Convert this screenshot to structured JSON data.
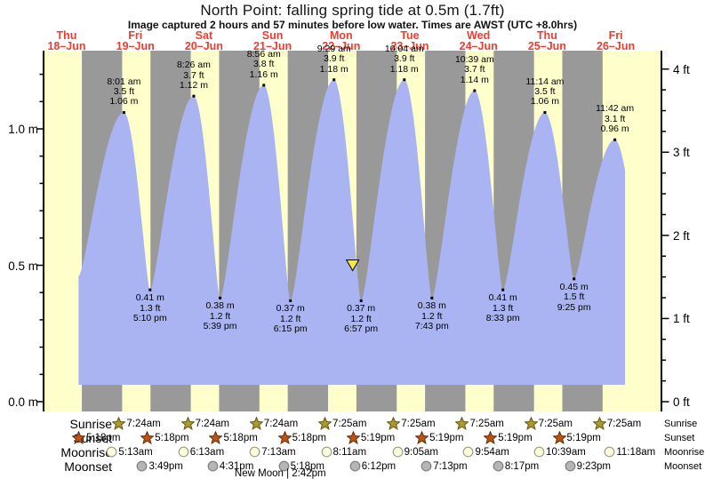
{
  "chart_data": {
    "type": "area",
    "title": "North Point: falling  spring tide at 0.5m (1.7ft)",
    "subtitle": "Image captured 2 hours and 57 minutes before low water. Times are AWST (UTC +8.0hrs)",
    "days": [
      {
        "dow": "Thu",
        "date": "18–Jun"
      },
      {
        "dow": "Fri",
        "date": "19–Jun"
      },
      {
        "dow": "Sat",
        "date": "20–Jun"
      },
      {
        "dow": "Sun",
        "date": "21–Jun"
      },
      {
        "dow": "Mon",
        "date": "22–Jun"
      },
      {
        "dow": "Tue",
        "date": "23–Jun"
      },
      {
        "dow": "Wed",
        "date": "24–Jun"
      },
      {
        "dow": "Thu",
        "date": "25–Jun"
      },
      {
        "dow": "Fri",
        "date": "26–Jun"
      }
    ],
    "y_axis_left": {
      "unit": "m",
      "major_ticks": [
        {
          "label": "0.0 m",
          "value": 0
        },
        {
          "label": "0.5 m",
          "value": 0.5
        },
        {
          "label": "1.0 m",
          "value": 1.0
        }
      ],
      "minor_step": 0.1,
      "max": 1.28
    },
    "y_axis_right": {
      "unit": "ft",
      "major_ticks": [
        {
          "label": "0 ft",
          "value": 0
        },
        {
          "label": "1 ft",
          "value": 1
        },
        {
          "label": "2 ft",
          "value": 2
        },
        {
          "label": "3 ft",
          "value": 3
        },
        {
          "label": "4 ft",
          "value": 4
        }
      ],
      "minor_step": 0.25
    },
    "tides": [
      {
        "day": 1,
        "type": "high",
        "time": "8:01 am",
        "ft": "3.5 ft",
        "m": "1.06 m",
        "height_m": 1.06
      },
      {
        "day": 1,
        "type": "low",
        "time": "5:10 pm",
        "ft": "1.3 ft",
        "m": "0.41 m",
        "height_m": 0.41
      },
      {
        "day": 2,
        "type": "high",
        "time": "8:26 am",
        "ft": "3.7 ft",
        "m": "1.12 m",
        "height_m": 1.12
      },
      {
        "day": 2,
        "type": "low",
        "time": "5:39 pm",
        "ft": "1.2 ft",
        "m": "0.38 m",
        "height_m": 0.38
      },
      {
        "day": 3,
        "type": "high",
        "time": "8:56 am",
        "ft": "3.8 ft",
        "m": "1.16 m",
        "height_m": 1.16
      },
      {
        "day": 3,
        "type": "low",
        "time": "6:15 pm",
        "ft": "1.2 ft",
        "m": "0.37 m",
        "height_m": 0.37
      },
      {
        "day": 4,
        "type": "high",
        "time": "9:29 am",
        "ft": "3.9 ft",
        "m": "1.18 m",
        "height_m": 1.18
      },
      {
        "day": 4,
        "type": "low",
        "time": "6:57 pm",
        "ft": "1.2 ft",
        "m": "0.37 m",
        "height_m": 0.37
      },
      {
        "day": 5,
        "type": "high",
        "time": "10:04 am",
        "ft": "3.9 ft",
        "m": "1.18 m",
        "height_m": 1.18
      },
      {
        "day": 5,
        "type": "low",
        "time": "7:43 pm",
        "ft": "1.2 ft",
        "m": "0.38 m",
        "height_m": 0.38
      },
      {
        "day": 6,
        "type": "high",
        "time": "10:39 am",
        "ft": "3.7 ft",
        "m": "1.14 m",
        "height_m": 1.14
      },
      {
        "day": 6,
        "type": "low",
        "time": "8:33 pm",
        "ft": "1.3 ft",
        "m": "0.41 m",
        "height_m": 0.41
      },
      {
        "day": 7,
        "type": "high",
        "time": "11:14 am",
        "ft": "3.5 ft",
        "m": "1.06 m",
        "height_m": 1.06
      },
      {
        "day": 7,
        "type": "low",
        "time": "9:25 pm",
        "ft": "1.5 ft",
        "m": "0.45 m",
        "height_m": 0.45
      },
      {
        "day": 8,
        "type": "high",
        "time": "11:42 am",
        "ft": "3.1 ft",
        "m": "0.96 m",
        "height_m": 0.96
      }
    ],
    "current_marker": {
      "day": 4,
      "time": "4:00 pm",
      "height_m": 0.5,
      "shape": "triangle-down"
    }
  },
  "astro": {
    "rows": [
      {
        "label": "Sunrise",
        "icon": "sunrise-star",
        "start_day": 1,
        "times": [
          "7:24am",
          "7:24am",
          "7:24am",
          "7:25am",
          "7:25am",
          "7:25am",
          "7:25am",
          "7:25am"
        ]
      },
      {
        "label": "Sunset",
        "icon": "sunset-star",
        "start_day": 0,
        "times": [
          "5:18pm",
          "5:18pm",
          "5:18pm",
          "5:18pm",
          "5:19pm",
          "5:19pm",
          "5:19pm",
          "5:19pm"
        ]
      },
      {
        "label": "Moonrise",
        "icon": "moonrise-circle",
        "start_day": 1,
        "times": [
          "5:13am",
          "6:13am",
          "7:13am",
          "8:11am",
          "9:05am",
          "9:54am",
          "10:39am",
          "11:18am"
        ]
      },
      {
        "label": "Moonset",
        "icon": "moonset-circle",
        "start_day": 1,
        "times": [
          "3:49pm",
          "4:31pm",
          "5:18pm",
          "6:12pm",
          "7:13pm",
          "8:17pm",
          "9:23pm"
        ]
      }
    ],
    "moon_phase": {
      "text": "New Moon | 2:42pm",
      "day": 3,
      "time": "2:42pm"
    }
  },
  "colors": {
    "day_band": "#ffffcc",
    "night_band": "#999999",
    "tide_fill": "#aab4f2",
    "date_label": "#f23b2f",
    "marker_fill": "#f5e642",
    "sunrise_star": "#ac9a2d",
    "sunrise_star_edge": "#5f5512",
    "sunset_star": "#c35111",
    "sunset_star_edge": "#5f2a08",
    "moonrise_fill": "#ffffd6",
    "moonrise_edge": "#999999",
    "moonset_fill": "#b5b5b5",
    "moonset_edge": "#7d7d7d"
  }
}
